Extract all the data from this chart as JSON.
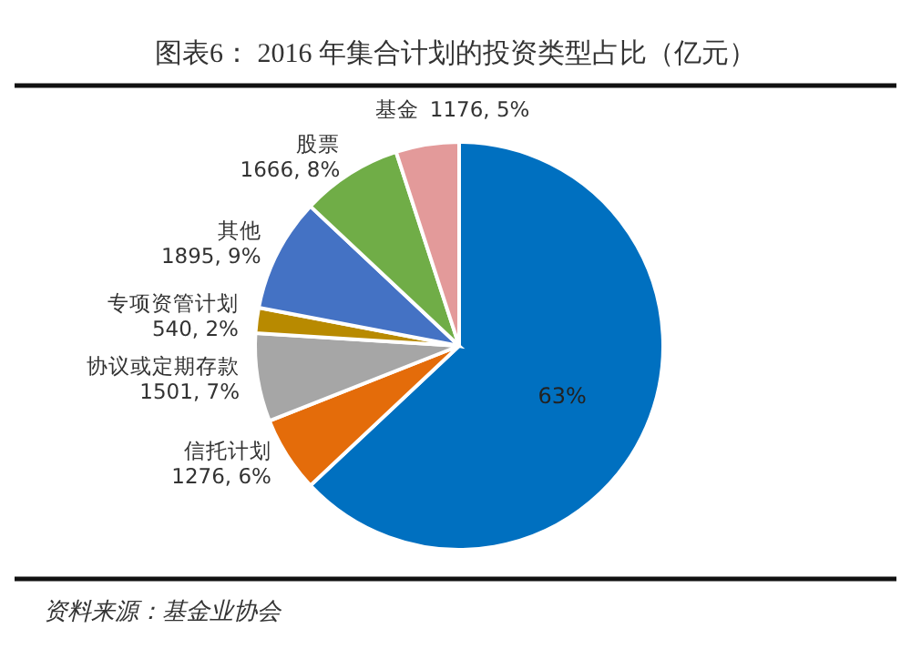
{
  "chart_data": {
    "type": "pie",
    "title": "图表6：  2016 年集合计划的投资类型占比（亿元）",
    "categories": [
      null,
      "信托计划",
      "协议或定期存款",
      "专项资管计划",
      "其他",
      "股票",
      "基金"
    ],
    "values": [
      63,
      6,
      7,
      2,
      9,
      8,
      5
    ],
    "value_labels": [
      "63%",
      "1276, 6%",
      "1501, 7%",
      "540, 2%",
      "1895, 9%",
      "1666, 8%",
      "1176, 5%"
    ],
    "colors": [
      "#0070c0",
      "#e46c0a",
      "#a6a6a6",
      "#b88a00",
      "#4472c4",
      "#70ad47",
      "#e39a9a"
    ],
    "annotations": [
      "资料来源：基金业协会"
    ]
  }
}
